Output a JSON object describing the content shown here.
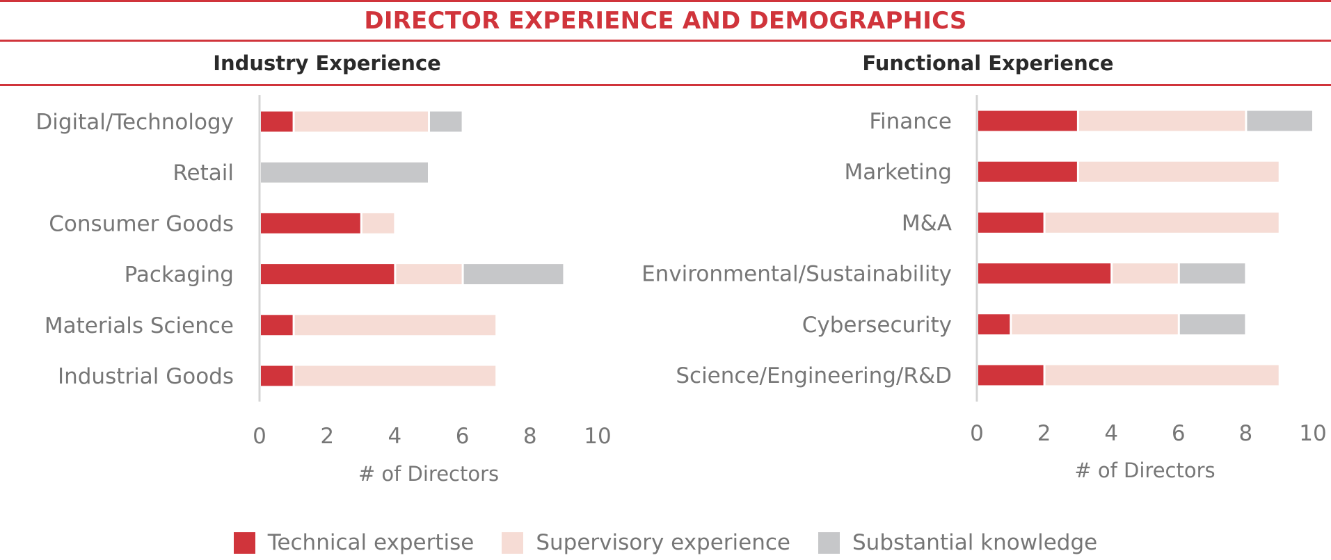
{
  "title": "DIRECTOR EXPERIENCE AND DEMOGRAPHICS",
  "colors": {
    "technical": "#d0343b",
    "supervisory": "#f6dcd5",
    "substantial": "#c6c7c9",
    "accent": "#d0343b"
  },
  "legend": [
    {
      "key": "technical",
      "label": "Technical expertise"
    },
    {
      "key": "supervisory",
      "label": "Supervisory experience"
    },
    {
      "key": "substantial",
      "label": "Substantial knowledge"
    }
  ],
  "chart_data": [
    {
      "type": "bar",
      "orientation": "horizontal",
      "stacked": true,
      "title": "Industry Experience",
      "xlabel": "# of Directors",
      "ylabel": "",
      "xlim": [
        0,
        10
      ],
      "xticks": [
        0,
        2,
        4,
        6,
        8,
        10
      ],
      "categories": [
        "Digital/Technology",
        "Retail",
        "Consumer Goods",
        "Packaging",
        "Materials Science",
        "Industrial Goods"
      ],
      "series": [
        {
          "name": "Technical expertise",
          "key": "technical",
          "values": [
            1,
            0,
            3,
            4,
            1,
            1
          ]
        },
        {
          "name": "Supervisory experience",
          "key": "supervisory",
          "values": [
            4,
            0,
            1,
            2,
            6,
            6
          ]
        },
        {
          "name": "Substantial knowledge",
          "key": "substantial",
          "values": [
            1,
            5,
            0,
            3,
            0,
            0
          ]
        }
      ]
    },
    {
      "type": "bar",
      "orientation": "horizontal",
      "stacked": true,
      "title": "Functional Experience",
      "xlabel": "# of Directors",
      "ylabel": "",
      "xlim": [
        0,
        10
      ],
      "xticks": [
        0,
        2,
        4,
        6,
        8,
        10
      ],
      "categories": [
        "Finance",
        "Marketing",
        "M&A",
        "Environmental/Sustainability",
        "Cybersecurity",
        "Science/Engineering/R&D"
      ],
      "series": [
        {
          "name": "Technical expertise",
          "key": "technical",
          "values": [
            3,
            3,
            2,
            4,
            1,
            2
          ]
        },
        {
          "name": "Supervisory experience",
          "key": "supervisory",
          "values": [
            5,
            6,
            7,
            2,
            5,
            7
          ]
        },
        {
          "name": "Substantial knowledge",
          "key": "substantial",
          "values": [
            2,
            0,
            0,
            2,
            2,
            0
          ]
        }
      ]
    }
  ]
}
